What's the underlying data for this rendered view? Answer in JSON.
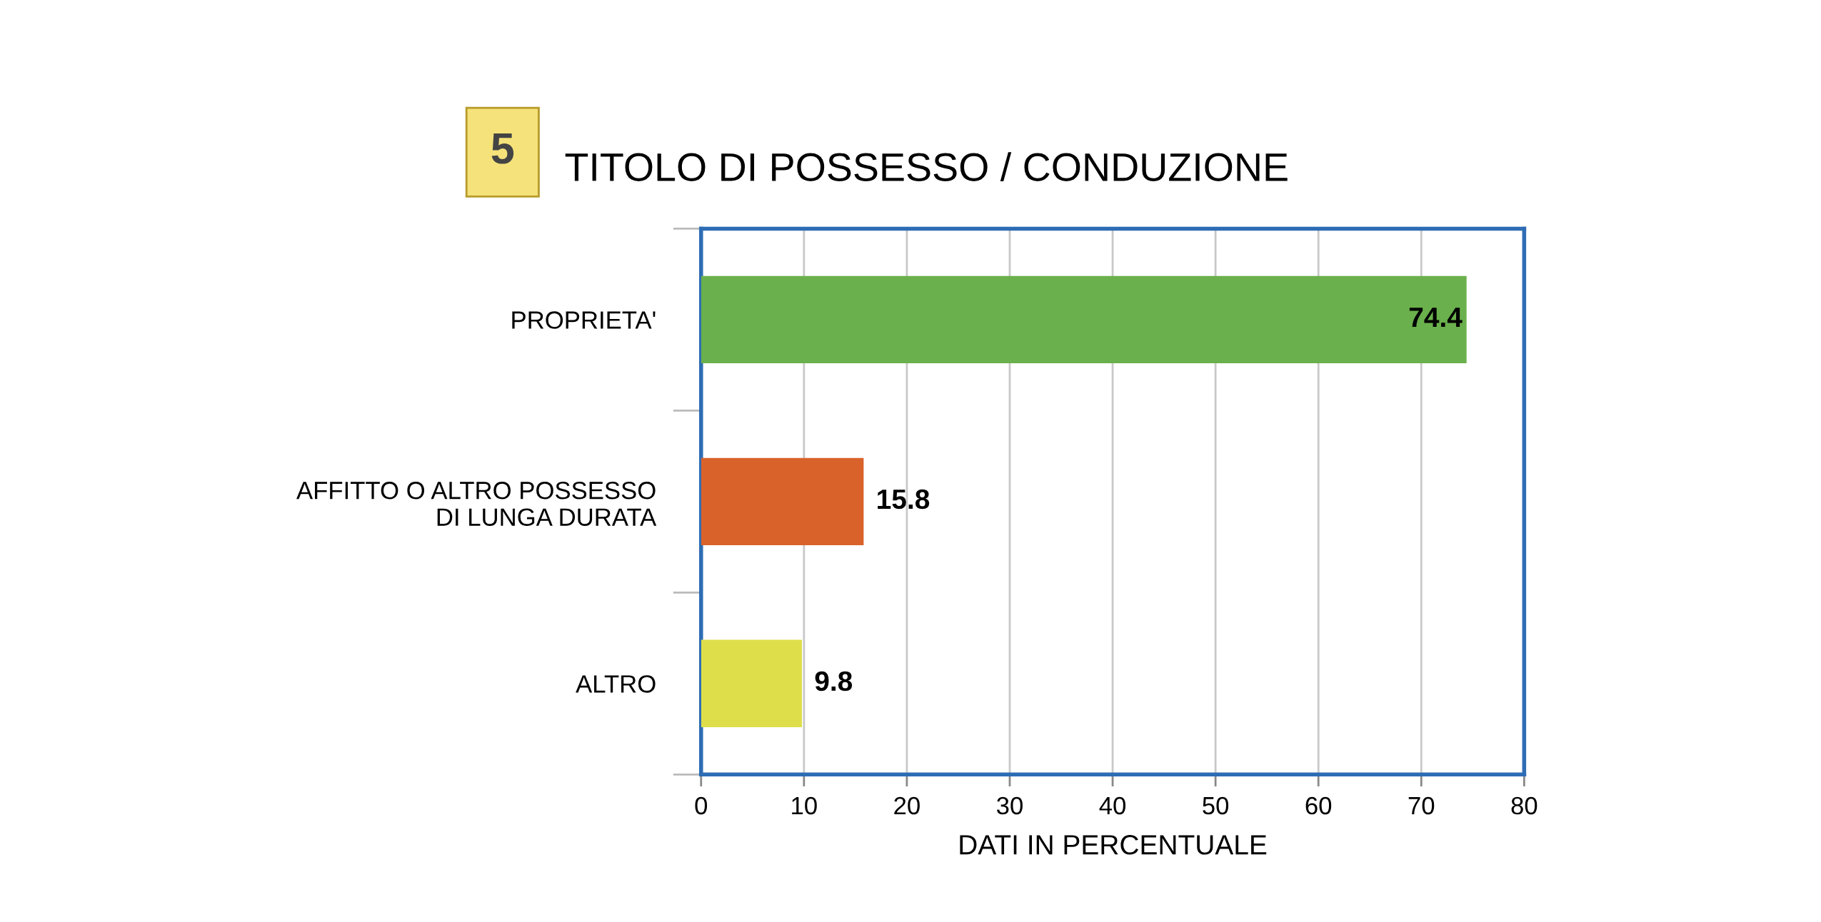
{
  "chart_data": {
    "type": "bar",
    "orientation": "horizontal",
    "title": "TITOLO DI POSSESSO / CONDUZIONE",
    "xlabel": "DATI IN PERCENTUALE",
    "categories": [
      "PROPRIETA'",
      "AFFITTO O ALTRO POSSESSO\nDI LUNGA DURATA",
      "ALTRO"
    ],
    "values": [
      74.4,
      15.8,
      9.8
    ],
    "colors": [
      "#6ab04c",
      "#d9622b",
      "#dede4a"
    ],
    "xlim": [
      0,
      80
    ],
    "xticks": [
      0,
      10,
      20,
      30,
      40,
      50,
      60,
      70,
      80
    ],
    "grid": "x",
    "data_labels": true,
    "annotations": [
      "5"
    ]
  }
}
